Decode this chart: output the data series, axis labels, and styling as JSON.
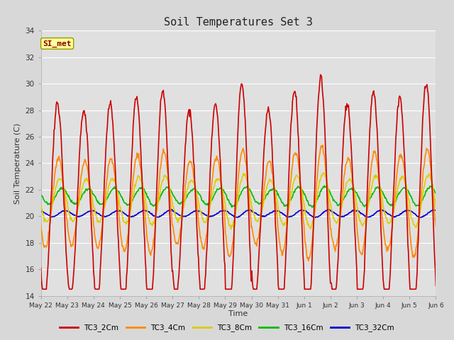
{
  "title": "Soil Temperatures Set 3",
  "ylabel": "Soil Temperature (C)",
  "xlabel": "Time",
  "ylim": [
    14,
    34
  ],
  "annotation": "SI_met",
  "fig_bg_color": "#d8d8d8",
  "plot_bg_color": "#e0e0e0",
  "series": [
    {
      "name": "TC3_2Cm",
      "color": "#cc0000",
      "lw": 1.2
    },
    {
      "name": "TC3_4Cm",
      "color": "#ff8800",
      "lw": 1.2
    },
    {
      "name": "TC3_8Cm",
      "color": "#ddcc00",
      "lw": 1.2
    },
    {
      "name": "TC3_16Cm",
      "color": "#00bb00",
      "lw": 1.2
    },
    {
      "name": "TC3_32Cm",
      "color": "#0000cc",
      "lw": 1.2
    }
  ],
  "tick_labels": [
    "May 22",
    "May 23",
    "May 24",
    "May 25",
    "May 26",
    "May 27",
    "May 28",
    "May 29",
    "May 30",
    "May 31",
    "Jun 1",
    "Jun 2",
    "Jun 3",
    "Jun 4",
    "Jun 5",
    "Jun 6"
  ],
  "yticks": [
    14,
    16,
    18,
    20,
    22,
    24,
    26,
    28,
    30,
    32,
    34
  ],
  "n_days": 15
}
